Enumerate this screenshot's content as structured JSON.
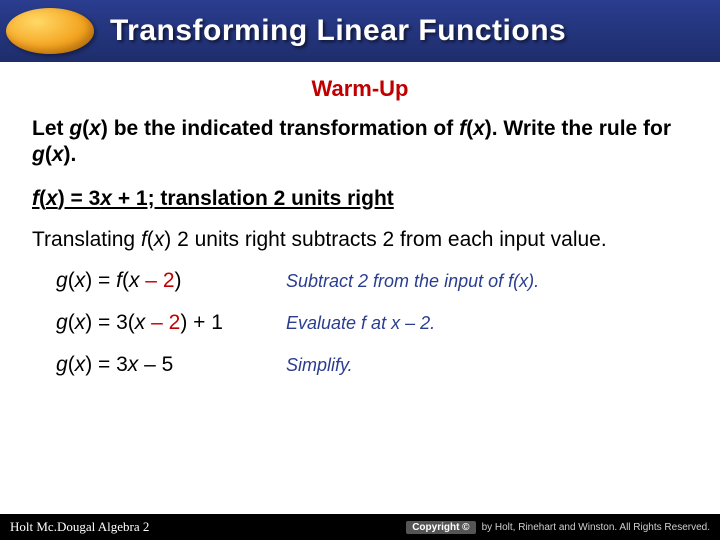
{
  "header": {
    "title": "Transforming Linear Functions",
    "title_color": "#ffffff",
    "bg_gradient_top": "#2a3d8f",
    "bg_gradient_bottom": "#1e2d6b",
    "oval_colors": [
      "#ffd966",
      "#f5a623",
      "#d68910"
    ]
  },
  "warmup": {
    "label": "Warm-Up",
    "color": "#c00000",
    "fontsize": 22
  },
  "prompt": {
    "pre1": "Let ",
    "gx": "g",
    "paren1": "(",
    "x1": "x",
    "paren2": ")",
    "mid1": " be the indicated transformation of ",
    "fx": "f",
    "paren3": "(",
    "x2": "x",
    "paren4": ")",
    "mid2": ". Write the rule for ",
    "gx2": "g",
    "paren5": "(",
    "x3": "x",
    "paren6": ").",
    "fontsize": 21
  },
  "problem": {
    "f": "f",
    "open": "(",
    "x": "x",
    "close": ") = 3",
    "x2": "x",
    "rest": " + 1;  translation 2 units right",
    "fontsize": 21
  },
  "explain": {
    "pre": "Translating ",
    "f": "f",
    "open": "(",
    "x": "x",
    "close": ")",
    "rest": " 2 units right subtracts 2 from each input value.",
    "fontsize": 21
  },
  "steps": [
    {
      "left": {
        "g": "g",
        "o1": "(",
        "x1": "x",
        "c1": ") = ",
        "f": "f",
        "o2": "(",
        "x2": "x",
        "minus": " – 2",
        "c2": ")"
      },
      "right": "Subtract 2 from the input of f(x)."
    },
    {
      "left": {
        "g": "g",
        "o1": "(",
        "x1": "x",
        "c1": ") = 3(",
        "x2": "x",
        "minus": " – 2",
        "c2": ") + 1"
      },
      "right": "Evaluate f at x – 2."
    },
    {
      "left": {
        "g": "g",
        "o1": "(",
        "x1": "x",
        "c1": ") = 3",
        "x2": "x",
        "rest": " – 5"
      },
      "right": "Simplify."
    }
  ],
  "footer": {
    "left": "Holt Mc.Dougal Algebra 2",
    "badge": "Copyright ©",
    "right": "by Holt, Rinehart and Winston. All Rights Reserved.",
    "bg": "#000000",
    "fg": "#ffffff"
  },
  "colors": {
    "red": "#c00000",
    "step_note": "#2a3d8f",
    "text": "#000000"
  }
}
